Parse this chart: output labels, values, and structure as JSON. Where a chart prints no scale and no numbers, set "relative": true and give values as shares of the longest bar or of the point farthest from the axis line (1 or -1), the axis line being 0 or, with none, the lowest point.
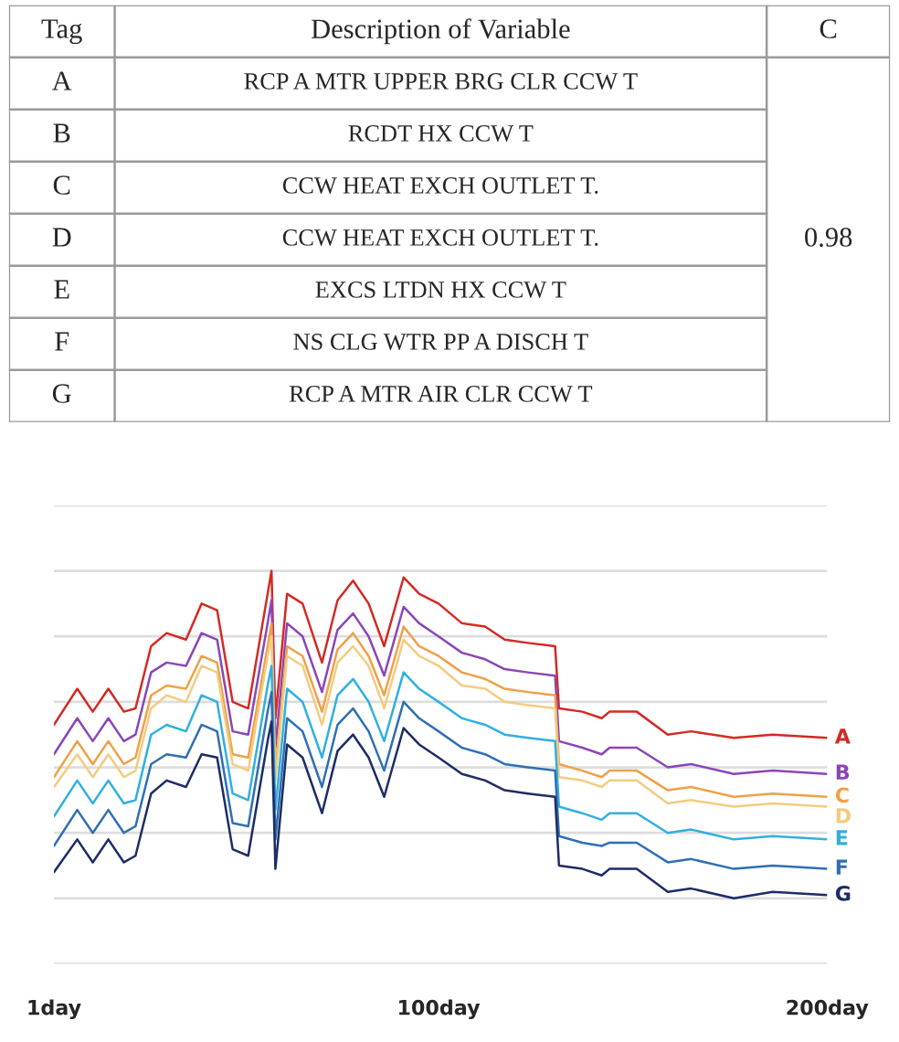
{
  "chart_data": [
    {
      "type": "other",
      "annotations": [
        "Tag",
        "Description of Variable",
        "C",
        "A",
        "RCP A MTR UPPER BRG CLR CCW T",
        "B",
        "RCDT HX CCW T",
        "C",
        "CCW HEAT EXCH OUTLET T.",
        "D",
        "CCW HEAT EXCH OUTLET T.",
        "E",
        "EXCS LTDN HX CCW T",
        "F",
        "NS CLG WTR PP A DISCH T",
        "G",
        "RCP A MTR AIR CLR CCW T",
        "0.98"
      ]
    },
    {
      "type": "line",
      "relative": true,
      "grid": "y",
      "line_style": "solid",
      "x": [
        1,
        7,
        11,
        15,
        19,
        22,
        26,
        30,
        35,
        39,
        43,
        47,
        51,
        56,
        57,
        58,
        61,
        65,
        70,
        74,
        78,
        82,
        86,
        91,
        95,
        100,
        106,
        112,
        117,
        123,
        130,
        131,
        137,
        142,
        144,
        151,
        159,
        165,
        176,
        186,
        200
      ],
      "xlim": [
        1,
        200
      ],
      "xticks": [
        {
          "value": 1,
          "label": "1day"
        },
        {
          "value": 100,
          "label": "100day"
        },
        {
          "value": 200,
          "label": "200day"
        }
      ],
      "series": [
        {
          "name": "A",
          "color": "#d42a24",
          "values": [
            0.53,
            0.64,
            0.57,
            0.64,
            0.57,
            0.58,
            0.77,
            0.81,
            0.79,
            0.9,
            0.88,
            0.6,
            0.58,
            0.93,
            1.0,
            0.55,
            0.93,
            0.9,
            0.72,
            0.91,
            0.97,
            0.9,
            0.77,
            0.98,
            0.93,
            0.9,
            0.84,
            0.83,
            0.79,
            0.78,
            0.77,
            0.58,
            0.57,
            0.55,
            0.57,
            0.57,
            0.5,
            0.51,
            0.49,
            0.5,
            0.49
          ]
        },
        {
          "name": "B",
          "color": "#8a46b8",
          "values": [
            0.44,
            0.55,
            0.48,
            0.55,
            0.48,
            0.5,
            0.69,
            0.72,
            0.71,
            0.81,
            0.79,
            0.51,
            0.5,
            0.84,
            0.91,
            0.46,
            0.84,
            0.8,
            0.63,
            0.82,
            0.87,
            0.8,
            0.68,
            0.89,
            0.84,
            0.8,
            0.75,
            0.73,
            0.7,
            0.69,
            0.68,
            0.48,
            0.46,
            0.44,
            0.46,
            0.46,
            0.4,
            0.41,
            0.38,
            0.39,
            0.38
          ]
        },
        {
          "name": "C",
          "color": "#f0a048",
          "values": [
            0.37,
            0.48,
            0.41,
            0.48,
            0.41,
            0.43,
            0.62,
            0.65,
            0.64,
            0.74,
            0.72,
            0.44,
            0.43,
            0.77,
            0.84,
            0.39,
            0.77,
            0.74,
            0.57,
            0.76,
            0.81,
            0.74,
            0.62,
            0.83,
            0.77,
            0.74,
            0.69,
            0.67,
            0.64,
            0.63,
            0.62,
            0.41,
            0.39,
            0.37,
            0.39,
            0.39,
            0.33,
            0.34,
            0.31,
            0.32,
            0.31
          ]
        },
        {
          "name": "D",
          "color": "#f3cc80",
          "values": [
            0.34,
            0.44,
            0.37,
            0.44,
            0.37,
            0.39,
            0.58,
            0.62,
            0.6,
            0.71,
            0.69,
            0.41,
            0.39,
            0.74,
            0.8,
            0.36,
            0.74,
            0.71,
            0.53,
            0.72,
            0.77,
            0.71,
            0.58,
            0.79,
            0.74,
            0.71,
            0.65,
            0.64,
            0.6,
            0.59,
            0.58,
            0.37,
            0.36,
            0.34,
            0.36,
            0.36,
            0.29,
            0.3,
            0.28,
            0.29,
            0.28
          ]
        },
        {
          "name": "E",
          "color": "#2fb0e0",
          "values": [
            0.25,
            0.36,
            0.29,
            0.36,
            0.29,
            0.3,
            0.5,
            0.53,
            0.51,
            0.62,
            0.6,
            0.32,
            0.3,
            0.65,
            0.71,
            0.27,
            0.64,
            0.6,
            0.43,
            0.62,
            0.67,
            0.6,
            0.48,
            0.69,
            0.64,
            0.6,
            0.55,
            0.53,
            0.5,
            0.49,
            0.48,
            0.28,
            0.26,
            0.24,
            0.26,
            0.26,
            0.2,
            0.21,
            0.18,
            0.19,
            0.18
          ]
        },
        {
          "name": "F",
          "color": "#2f6fb4",
          "values": [
            0.16,
            0.27,
            0.2,
            0.27,
            0.2,
            0.22,
            0.41,
            0.44,
            0.43,
            0.53,
            0.51,
            0.23,
            0.22,
            0.57,
            0.63,
            0.18,
            0.55,
            0.51,
            0.34,
            0.53,
            0.58,
            0.51,
            0.39,
            0.6,
            0.55,
            0.51,
            0.46,
            0.44,
            0.41,
            0.4,
            0.39,
            0.19,
            0.17,
            0.16,
            0.17,
            0.17,
            0.11,
            0.12,
            0.09,
            0.1,
            0.09
          ]
        },
        {
          "name": "G",
          "color": "#1c2c66",
          "values": [
            0.08,
            0.18,
            0.11,
            0.18,
            0.11,
            0.13,
            0.32,
            0.36,
            0.34,
            0.44,
            0.43,
            0.15,
            0.13,
            0.48,
            0.54,
            0.09,
            0.47,
            0.43,
            0.26,
            0.45,
            0.5,
            0.43,
            0.31,
            0.52,
            0.47,
            0.43,
            0.38,
            0.36,
            0.33,
            0.32,
            0.31,
            0.1,
            0.09,
            0.07,
            0.09,
            0.09,
            0.02,
            0.03,
            0.0,
            0.02,
            0.01
          ]
        }
      ]
    }
  ]
}
